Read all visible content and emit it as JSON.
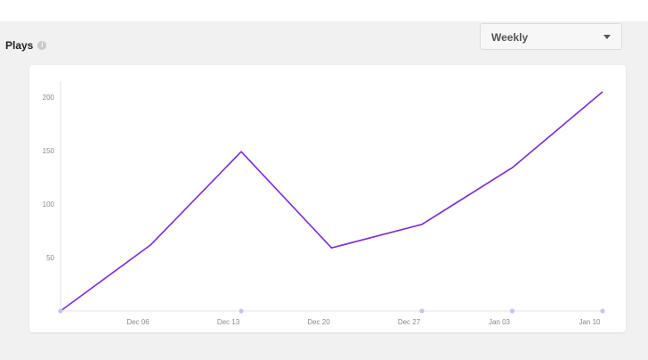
{
  "header": {
    "title": "Plays",
    "info_icon": "info-icon",
    "period_select": {
      "selected": "Weekly",
      "icon": "chevron-down-icon"
    }
  },
  "colors": {
    "line": "#7b2ad6",
    "marker": "#c8c3ef",
    "axis": "#e6e6e6"
  },
  "chart_data": {
    "type": "line",
    "x": [
      "2020-11-30",
      "2020-12-07",
      "2020-12-14",
      "2020-12-21",
      "2020-12-28",
      "2021-01-04",
      "2021-01-11"
    ],
    "series": [
      {
        "values": [
          0,
          62,
          149,
          59,
          81,
          134,
          205
        ]
      }
    ],
    "markers": [
      "2020-11-30",
      "2020-12-14",
      "2020-12-28",
      "2021-01-04",
      "2021-01-11"
    ],
    "yticks": [
      "50",
      "100",
      "150",
      "200"
    ],
    "xticks": [
      {
        "date": "2020-12-06",
        "label": "Dec 06"
      },
      {
        "date": "2020-12-13",
        "label": "Dec 13"
      },
      {
        "date": "2020-12-20",
        "label": "Dec 20"
      },
      {
        "date": "2020-12-27",
        "label": "Dec 27"
      },
      {
        "date": "2021-01-03",
        "label": "Jan 03"
      },
      {
        "date": "2021-01-10",
        "label": "Jan 10"
      }
    ],
    "ylim": [
      0,
      210
    ],
    "grid": false,
    "legend": "none"
  }
}
